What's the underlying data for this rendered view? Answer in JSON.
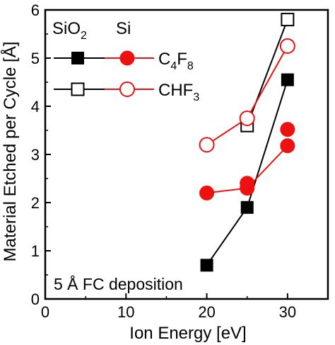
{
  "chart_data": {
    "type": "scatter",
    "xlabel": "Ion Energy [eV]",
    "ylabel": "Material Etched per Cycle [Å]",
    "xlim": [
      0,
      35
    ],
    "ylim": [
      0,
      6
    ],
    "xticks": [
      0,
      10,
      20,
      30
    ],
    "yticks": [
      0,
      1,
      2,
      3,
      4,
      5,
      6
    ],
    "x_tick_labels": [
      "0",
      "10",
      "20",
      "30"
    ],
    "y_tick_labels": [
      "0",
      "1",
      "2",
      "3",
      "4",
      "5",
      "6"
    ],
    "grid": false,
    "series": [
      {
        "name": "SiO2 C4F8",
        "material": "SiO2",
        "gas": "C4F8",
        "marker": "square",
        "filled": true,
        "color": "#000000",
        "x": [
          20,
          25,
          30
        ],
        "y": [
          0.7,
          1.9,
          4.55
        ]
      },
      {
        "name": "Si C4F8",
        "material": "Si",
        "gas": "C4F8",
        "marker": "circle",
        "filled": true,
        "color": "#ee1111",
        "x": [
          20,
          25,
          25,
          30,
          30
        ],
        "y": [
          2.2,
          2.3,
          2.4,
          3.18,
          3.52
        ]
      },
      {
        "name": "SiO2 CHF3",
        "material": "SiO2",
        "gas": "CHF3",
        "marker": "square",
        "filled": false,
        "color": "#000000",
        "x": [
          25,
          30
        ],
        "y": [
          3.6,
          5.8
        ]
      },
      {
        "name": "Si CHF3",
        "material": "Si",
        "gas": "CHF3",
        "marker": "circle",
        "filled": false,
        "color": "#ee1111",
        "x": [
          20,
          25,
          30
        ],
        "y": [
          3.2,
          3.75,
          5.25
        ]
      }
    ],
    "lines": [
      {
        "series": "SiO2 C4F8",
        "color": "#000000",
        "x": [
          20,
          25,
          30
        ],
        "y": [
          0.7,
          1.9,
          4.55
        ]
      },
      {
        "series": "SiO2 CHF3",
        "color": "#000000",
        "x": [
          25,
          30
        ],
        "y": [
          3.6,
          5.8
        ]
      },
      {
        "series": "Si C4F8",
        "color": "#ee1111",
        "x": [
          20,
          25,
          30
        ],
        "y": [
          2.2,
          2.3,
          3.18
        ]
      },
      {
        "series": "Si CHF3",
        "color": "#ee1111",
        "x": [
          20,
          25,
          30
        ],
        "y": [
          3.2,
          3.75,
          5.25
        ]
      }
    ],
    "legend": {
      "placement": "top-left",
      "column_headers": [
        {
          "base": "SiO",
          "sub": "2"
        },
        {
          "base": "Si",
          "sub": ""
        }
      ],
      "rows": [
        {
          "parts": [
            {
              "t": "C",
              "sub": false
            },
            {
              "t": "4",
              "sub": true
            },
            {
              "t": "F",
              "sub": false
            },
            {
              "t": "8",
              "sub": true
            }
          ],
          "filled": true
        },
        {
          "parts": [
            {
              "t": "CHF",
              "sub": false
            },
            {
              "t": "3",
              "sub": true
            }
          ],
          "filled": false
        }
      ]
    },
    "annotation": "5 Å FC deposition",
    "colors": {
      "black": "#000000",
      "red": "#ee1111"
    }
  }
}
